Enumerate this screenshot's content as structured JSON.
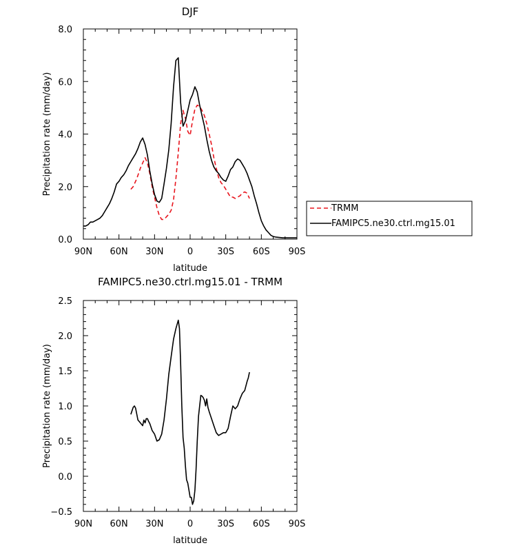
{
  "chart_data": [
    {
      "type": "line",
      "title": "DJF",
      "xlabel": "latitude",
      "ylabel": "Precipitation rate (mm/day)",
      "xlim": [
        90,
        -90
      ],
      "ylim": [
        0,
        8
      ],
      "x_ticks": [
        90,
        60,
        30,
        0,
        -30,
        -60,
        -90
      ],
      "x_tick_labels": [
        "90N",
        "60N",
        "30N",
        "0",
        "30S",
        "60S",
        "90S"
      ],
      "y_ticks": [
        0,
        2,
        4,
        6,
        8
      ],
      "y_tick_labels": [
        "0.0",
        "2.0",
        "4.0",
        "6.0",
        "8.0"
      ],
      "legend_position": "right",
      "series": [
        {
          "name": "TRMM",
          "color": "#e8141c",
          "dash": "dashed",
          "x": [
            50,
            48,
            45,
            42,
            40,
            38,
            36,
            34,
            32,
            30,
            28,
            26,
            24,
            22,
            20,
            18,
            16,
            14,
            12,
            10,
            8,
            6,
            4,
            2,
            0,
            -2,
            -4,
            -6,
            -8,
            -10,
            -12,
            -14,
            -16,
            -18,
            -20,
            -22,
            -24,
            -26,
            -28,
            -30,
            -32,
            -34,
            -36,
            -38,
            -40,
            -42,
            -44,
            -46,
            -48,
            -50
          ],
          "y": [
            1.9,
            2.0,
            2.3,
            2.7,
            2.9,
            3.1,
            2.9,
            2.5,
            2.0,
            1.6,
            1.2,
            0.9,
            0.75,
            0.75,
            0.85,
            0.95,
            1.1,
            1.5,
            2.3,
            3.3,
            4.4,
            4.9,
            4.6,
            4.1,
            3.95,
            4.5,
            4.95,
            5.1,
            5.05,
            4.9,
            4.7,
            4.4,
            4.0,
            3.6,
            3.1,
            2.7,
            2.35,
            2.15,
            2.05,
            1.9,
            1.75,
            1.6,
            1.6,
            1.55,
            1.6,
            1.65,
            1.75,
            1.8,
            1.75,
            1.55
          ]
        },
        {
          "name": "FAMIPC5.ne30.ctrl.mg15.01",
          "color": "#000000",
          "dash": "solid",
          "x": [
            90,
            88,
            86,
            84,
            82,
            80,
            78,
            76,
            74,
            72,
            70,
            68,
            66,
            64,
            62,
            60,
            58,
            56,
            54,
            52,
            50,
            48,
            46,
            44,
            42,
            40,
            38,
            36,
            34,
            32,
            30,
            28,
            26,
            24,
            22,
            20,
            18,
            16,
            14,
            12,
            10,
            8,
            6,
            4,
            2,
            0,
            -2,
            -4,
            -6,
            -8,
            -10,
            -12,
            -14,
            -16,
            -18,
            -20,
            -22,
            -24,
            -26,
            -28,
            -30,
            -32,
            -34,
            -36,
            -38,
            -40,
            -42,
            -44,
            -46,
            -48,
            -50,
            -52,
            -54,
            -56,
            -58,
            -60,
            -62,
            -64,
            -66,
            -68,
            -70,
            -72,
            -74,
            -76,
            -78,
            -80,
            -82,
            -84,
            -86,
            -88,
            -90
          ],
          "y": [
            0.5,
            0.5,
            0.55,
            0.65,
            0.65,
            0.7,
            0.75,
            0.8,
            0.9,
            1.05,
            1.2,
            1.35,
            1.55,
            1.8,
            2.1,
            2.2,
            2.35,
            2.45,
            2.6,
            2.8,
            2.95,
            3.1,
            3.25,
            3.45,
            3.7,
            3.85,
            3.6,
            3.2,
            2.6,
            2.1,
            1.7,
            1.45,
            1.4,
            1.55,
            2.1,
            2.7,
            3.4,
            4.4,
            5.8,
            6.8,
            6.9,
            5.2,
            4.3,
            4.5,
            4.9,
            5.3,
            5.5,
            5.8,
            5.6,
            5.1,
            4.7,
            4.3,
            3.8,
            3.35,
            3.0,
            2.75,
            2.6,
            2.5,
            2.35,
            2.25,
            2.2,
            2.4,
            2.65,
            2.75,
            2.95,
            3.05,
            3.0,
            2.85,
            2.7,
            2.5,
            2.25,
            2.0,
            1.65,
            1.35,
            1.0,
            0.7,
            0.5,
            0.35,
            0.25,
            0.15,
            0.1,
            0.08,
            0.07,
            0.06,
            0.05,
            0.05,
            0.05,
            0.05,
            0.05,
            0.05,
            0.05
          ]
        }
      ]
    },
    {
      "type": "line",
      "title": "FAMIPC5.ne30.ctrl.mg15.01 - TRMM",
      "xlabel": "latitude",
      "ylabel": "Precipitation rate (mm/day)",
      "xlim": [
        90,
        -90
      ],
      "ylim": [
        -0.5,
        2.5
      ],
      "x_ticks": [
        90,
        60,
        30,
        0,
        -30,
        -60,
        -90
      ],
      "x_tick_labels": [
        "90N",
        "60N",
        "30N",
        "0",
        "30S",
        "60S",
        "90S"
      ],
      "y_ticks": [
        -0.5,
        0,
        0.5,
        1,
        1.5,
        2,
        2.5
      ],
      "y_tick_labels": [
        "−0.5",
        "0.0",
        "0.5",
        "1.0",
        "1.5",
        "2.0",
        "2.5"
      ],
      "series": [
        {
          "color": "#000000",
          "dash": "solid",
          "x": [
            50,
            48,
            47,
            46,
            44,
            42,
            40,
            39,
            38,
            37,
            36,
            35,
            34,
            32,
            30,
            28,
            26,
            24,
            22,
            20,
            18,
            16,
            14,
            12,
            10,
            9,
            8,
            7,
            6,
            5,
            4,
            3,
            2,
            1,
            0,
            -1,
            -2,
            -3,
            -4,
            -5,
            -6,
            -7,
            -8,
            -9,
            -10,
            -11,
            -12,
            -13,
            -14,
            -15,
            -16,
            -18,
            -20,
            -22,
            -24,
            -26,
            -28,
            -30,
            -32,
            -34,
            -36,
            -38,
            -40,
            -42,
            -44,
            -46,
            -48,
            -49,
            -50
          ],
          "y": [
            0.88,
            0.98,
            1.0,
            0.97,
            0.8,
            0.76,
            0.72,
            0.8,
            0.76,
            0.82,
            0.82,
            0.78,
            0.75,
            0.65,
            0.6,
            0.5,
            0.52,
            0.6,
            0.8,
            1.1,
            1.45,
            1.7,
            1.95,
            2.1,
            2.22,
            2.1,
            1.6,
            1.0,
            0.55,
            0.4,
            0.15,
            -0.05,
            -0.1,
            -0.2,
            -0.3,
            -0.3,
            -0.4,
            -0.35,
            -0.2,
            0.1,
            0.5,
            0.85,
            1.0,
            1.15,
            1.14,
            1.12,
            1.08,
            1.0,
            1.1,
            0.98,
            0.92,
            0.82,
            0.72,
            0.62,
            0.58,
            0.6,
            0.62,
            0.62,
            0.68,
            0.85,
            1.0,
            0.96,
            1.0,
            1.1,
            1.18,
            1.22,
            1.35,
            1.4,
            1.48
          ]
        }
      ]
    }
  ]
}
